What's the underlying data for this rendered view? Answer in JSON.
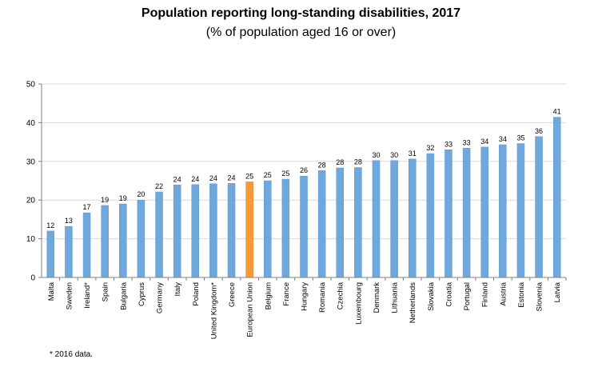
{
  "chart_data": {
    "type": "bar",
    "title": "Population reporting long-standing disabilities, 2017",
    "subtitle": "(% of population aged 16 or over)",
    "categories": [
      "Malta",
      "Sweden",
      "Ireland*",
      "Spain",
      "Bulgaria",
      "Cyprus",
      "Germany",
      "Italy",
      "Poland",
      "United Kingdom*",
      "Greece",
      "European Union",
      "Belgium",
      "France",
      "Hungary",
      "Romania",
      "Czechia",
      "Luxembourg",
      "Denmark",
      "Lithuania",
      "Netherlands",
      "Slovakia",
      "Croatia",
      "Portugal",
      "Finland",
      "Austria",
      "Estonia",
      "Slovenia",
      "Latvia"
    ],
    "values": [
      12.0,
      13.2,
      16.7,
      18.6,
      19.0,
      20.0,
      22.1,
      23.9,
      24.0,
      24.2,
      24.3,
      24.7,
      25.0,
      25.4,
      26.2,
      27.6,
      28.3,
      28.4,
      30.2,
      30.2,
      30.6,
      32.0,
      33.0,
      33.4,
      33.7,
      34.3,
      34.6,
      36.4,
      41.4
    ],
    "data_labels": [
      "12",
      "13",
      "17",
      "19",
      "19",
      "20",
      "22",
      "24",
      "24",
      "24",
      "24",
      "25",
      "25",
      "25",
      "26",
      "28",
      "28",
      "28",
      "30",
      "30",
      "31",
      "32",
      "33",
      "33",
      "34",
      "34",
      "35",
      "36",
      "41"
    ],
    "highlight": "European Union",
    "ylim": [
      0,
      50
    ],
    "yticks": [
      0,
      10,
      20,
      30,
      40,
      50
    ],
    "grid": true,
    "legend": "none",
    "colors": {
      "bar": "#6fa8dc",
      "bar_edge": "#5b95c9",
      "highlight": "#f79a3a",
      "highlight_edge": "#e07f1e",
      "grid": "#d9d9d9",
      "axis": "#808080"
    }
  },
  "footnote": "* 2016 data."
}
